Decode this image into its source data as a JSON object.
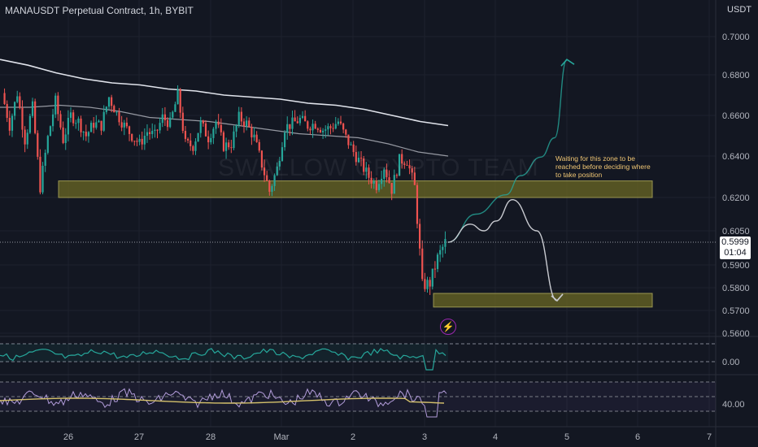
{
  "header": {
    "title": "MANAUSDT Perpetual Contract, 1h, BYBIT",
    "currency": "USDT"
  },
  "watermark": "SWALLOW CRYPTO TEAM",
  "annotation": "Waiting for this zone to be reached before deciding where to take position",
  "last_price": {
    "value": "0.5999",
    "countdown": "01:04"
  },
  "flash_icon": "lightning-icon",
  "colors": {
    "background": "#131722",
    "up": "#26a69a",
    "down": "#ef5350",
    "zone": "#6b6824",
    "annotation_text": "#f0c674",
    "oscillator": "#26a69a",
    "rsi_signal": "#d4c06b",
    "rsi_line": "#b39ddb"
  },
  "chart_data": {
    "type": "candlestick",
    "price_axis": {
      "ticks": [
        "0.7000",
        "0.6800",
        "0.6600",
        "0.6400",
        "0.6200",
        "0.6050",
        "0.5900",
        "0.5800",
        "0.5700",
        "0.5600"
      ]
    },
    "time_axis": {
      "ticks": [
        "26",
        "27",
        "28",
        "Mar",
        "2",
        "3",
        "4",
        "5",
        "6",
        "7"
      ]
    },
    "zones": [
      {
        "low": 0.62,
        "high": 0.628
      },
      {
        "low": 0.5715,
        "high": 0.5775
      }
    ],
    "price_path": [
      [
        0.671,
        "26"
      ],
      [
        0.655,
        ""
      ],
      [
        0.671,
        ""
      ],
      [
        0.648,
        ""
      ],
      [
        0.664,
        ""
      ],
      [
        0.625,
        "26"
      ],
      [
        0.649,
        ""
      ],
      [
        0.667,
        ""
      ],
      [
        0.648,
        ""
      ],
      [
        0.66,
        ""
      ],
      [
        0.657,
        ""
      ],
      [
        0.65,
        ""
      ],
      [
        0.656,
        ""
      ],
      [
        0.655,
        "27"
      ],
      [
        0.669,
        ""
      ],
      [
        0.661,
        ""
      ],
      [
        0.655,
        ""
      ],
      [
        0.65,
        ""
      ],
      [
        0.646,
        ""
      ],
      [
        0.652,
        ""
      ],
      [
        0.65,
        ""
      ],
      [
        0.659,
        ""
      ],
      [
        0.656,
        ""
      ],
      [
        0.67,
        "28"
      ],
      [
        0.646,
        ""
      ],
      [
        0.645,
        ""
      ],
      [
        0.656,
        ""
      ],
      [
        0.649,
        ""
      ],
      [
        0.657,
        ""
      ],
      [
        0.645,
        ""
      ],
      [
        0.646,
        ""
      ],
      [
        0.659,
        ""
      ],
      [
        0.656,
        ""
      ],
      [
        0.649,
        ""
      ],
      [
        0.636,
        "Mar"
      ],
      [
        0.623,
        ""
      ],
      [
        0.634,
        ""
      ],
      [
        0.654,
        ""
      ],
      [
        0.656,
        ""
      ],
      [
        0.658,
        ""
      ],
      [
        0.655,
        ""
      ],
      [
        0.656,
        ""
      ],
      [
        0.653,
        ""
      ],
      [
        0.654,
        "2"
      ],
      [
        0.657,
        ""
      ],
      [
        0.649,
        ""
      ],
      [
        0.642,
        ""
      ],
      [
        0.636,
        ""
      ],
      [
        0.63,
        ""
      ],
      [
        0.626,
        ""
      ],
      [
        0.635,
        ""
      ],
      [
        0.624,
        ""
      ],
      [
        0.638,
        ""
      ],
      [
        0.638,
        ""
      ],
      [
        0.625,
        "3"
      ],
      [
        0.581,
        ""
      ],
      [
        0.582,
        ""
      ],
      [
        0.593,
        ""
      ],
      [
        0.5999,
        ""
      ]
    ],
    "ma_fast": [
      0.664,
      0.664,
      0.665,
      0.664,
      0.662,
      0.659,
      0.658,
      0.657,
      0.655,
      0.653,
      0.651,
      0.65,
      0.649,
      0.646,
      0.642,
      0.64
    ],
    "ma_slow": [
      0.688,
      0.685,
      0.681,
      0.678,
      0.676,
      0.675,
      0.673,
      0.672,
      0.67,
      0.669,
      0.668,
      0.666,
      0.665,
      0.663,
      0.66,
      0.657,
      0.655
    ],
    "projection_up": [
      0.6,
      0.6125,
      0.6213,
      0.6305,
      0.6395,
      0.649,
      0.688
    ],
    "projection_down": [
      0.6,
      0.608,
      0.605,
      0.6094,
      0.619,
      0.605,
      0.5743
    ],
    "oscillator": {
      "level": "0.00"
    },
    "rsi": {
      "level": "40.00"
    }
  }
}
